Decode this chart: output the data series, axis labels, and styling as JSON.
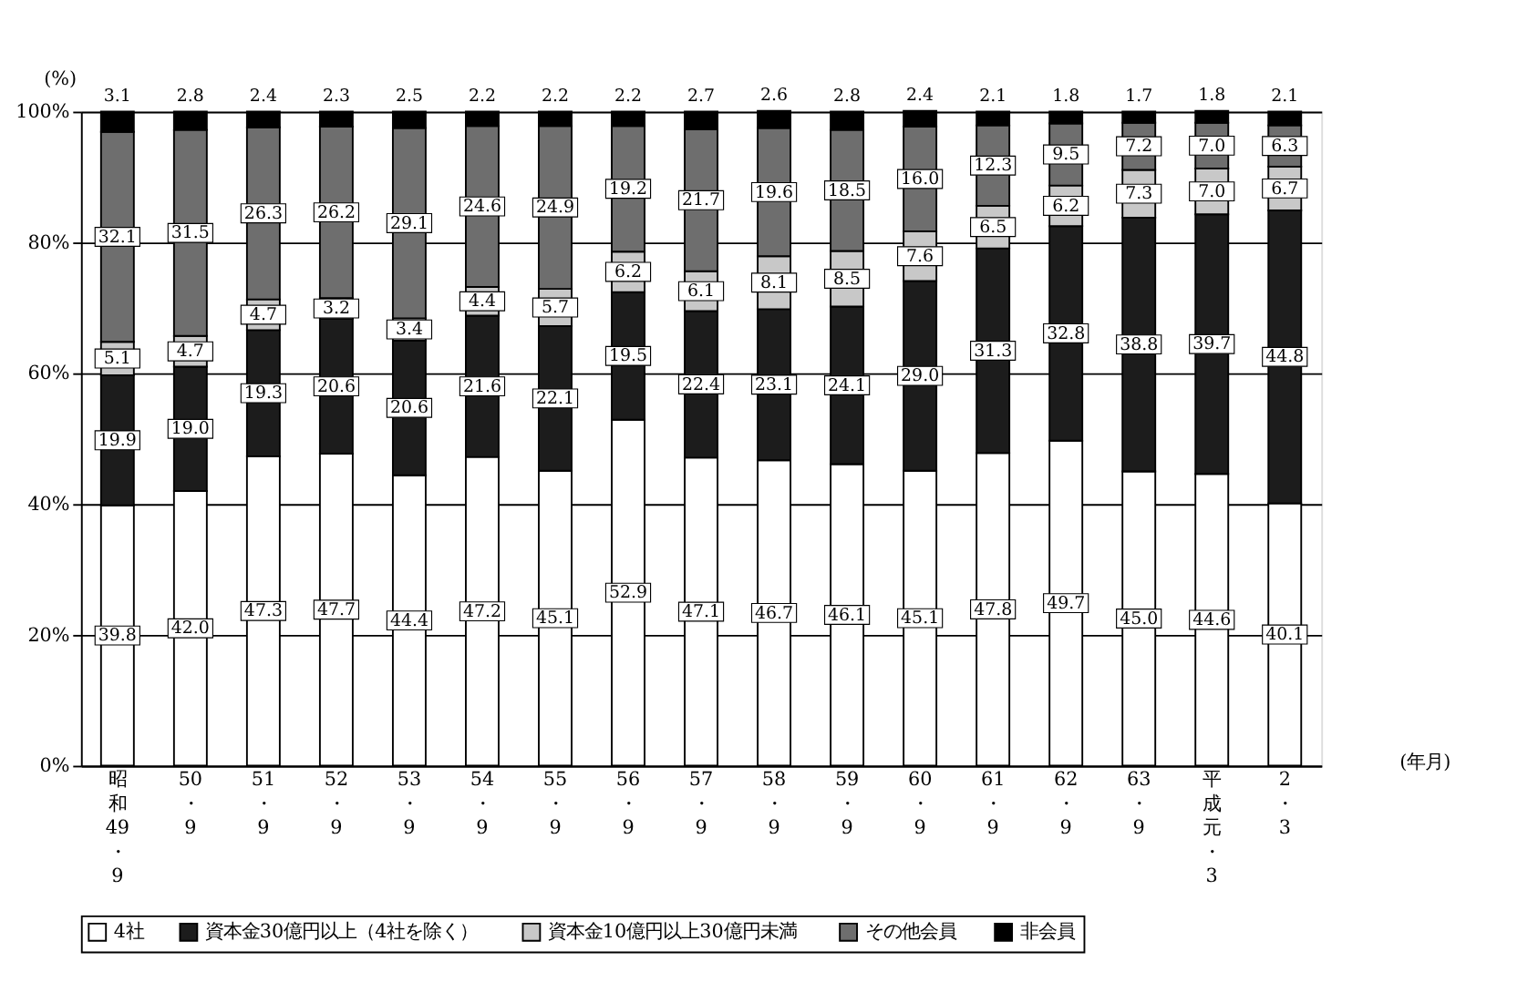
{
  "chart_data": {
    "type": "bar",
    "stacked": true,
    "legend": "bottom",
    "grid": "y",
    "ylabel": "(%)",
    "xlabel": "(年月)",
    "categories": [
      "昭和49・9",
      "50・9",
      "51・9",
      "52・9",
      "53・9",
      "54・9",
      "55・9",
      "56・9",
      "57・9",
      "58・9",
      "59・9",
      "60・9",
      "61・9",
      "62・9",
      "63・9",
      "平成元・3",
      "2・3"
    ],
    "ylim": [
      0,
      100
    ],
    "yticks": [
      {
        "value": 0,
        "label": "0%"
      },
      {
        "value": 20,
        "label": "20%"
      },
      {
        "value": 40,
        "label": "40%"
      },
      {
        "value": 60,
        "label": "60%"
      },
      {
        "value": 80,
        "label": "80%"
      },
      {
        "value": 100,
        "label": "100%"
      }
    ],
    "series": [
      {
        "name": "4社",
        "color": "#ffffff",
        "values": [
          39.8,
          42.0,
          47.3,
          47.7,
          44.4,
          47.2,
          45.1,
          52.9,
          47.1,
          46.7,
          46.1,
          45.1,
          47.8,
          49.7,
          45.0,
          44.6,
          40.1
        ],
        "value_labels": [
          "39.8",
          "42.0",
          "47.3",
          "47.7",
          "44.4",
          "47.2",
          "45.1",
          "52.9",
          "47.1",
          "46.7",
          "46.1",
          "45.1",
          "47.8",
          "49.7",
          "45.0",
          "44.6",
          "40.1"
        ]
      },
      {
        "name": "資本金30億円以上（4社を除く）",
        "color": "#1c1c1c",
        "values": [
          19.9,
          19.0,
          19.3,
          20.6,
          20.6,
          21.6,
          22.1,
          19.5,
          22.4,
          23.1,
          24.1,
          29.0,
          31.3,
          32.8,
          38.8,
          39.7,
          44.8
        ],
        "value_labels": [
          "19.9",
          "19.0",
          "19.3",
          "20.6",
          "20.6",
          "21.6",
          "22.1",
          "19.5",
          "22.4",
          "23.1",
          "24.1",
          "29.0",
          "31.3",
          "32.8",
          "38.8",
          "39.7",
          "44.8"
        ]
      },
      {
        "name": "資本金10億円以上30億円未満",
        "color": "#c8c8c8",
        "values": [
          5.1,
          4.7,
          4.7,
          3.2,
          3.4,
          4.4,
          5.7,
          6.2,
          6.1,
          8.1,
          8.5,
          7.6,
          6.5,
          6.2,
          7.3,
          7.0,
          6.7
        ],
        "value_labels": [
          "5.1",
          "4.7",
          "4.7",
          "3.2",
          "3.4",
          "4.4",
          "5.7",
          "6.2",
          "6.1",
          "8.1",
          "8.5",
          "7.6",
          "6.5",
          "6.2",
          "7.3",
          "7.0",
          "6.7"
        ]
      },
      {
        "name": "その他会員",
        "color": "#6e6e6e",
        "values": [
          32.1,
          31.5,
          26.3,
          26.2,
          29.1,
          24.6,
          24.9,
          19.2,
          21.7,
          19.6,
          18.5,
          16.0,
          12.3,
          9.5,
          7.2,
          7.0,
          6.3
        ],
        "value_labels": [
          "32.1",
          "31.5",
          "26.3",
          "26.2",
          "29.1",
          "24.6",
          "24.9",
          "19.2",
          "21.7",
          "19.6",
          "18.5",
          "16.0",
          "12.3",
          "9.5",
          "7.2",
          "7.0",
          "6.3"
        ]
      },
      {
        "name": "非会員",
        "color": "#000000",
        "values": [
          3.1,
          2.8,
          2.4,
          2.3,
          2.5,
          2.2,
          2.2,
          2.2,
          2.7,
          2.6,
          2.8,
          2.4,
          2.1,
          1.8,
          1.7,
          1.8,
          2.1
        ],
        "value_labels": [
          "3.1",
          "2.8",
          "2.4",
          "2.3",
          "2.5",
          "2.2",
          "2.2",
          "2.2",
          "2.7",
          "2.6",
          "2.8",
          "2.4",
          "2.1",
          "1.8",
          "1.7",
          "1.8",
          "2.1"
        ]
      }
    ]
  }
}
